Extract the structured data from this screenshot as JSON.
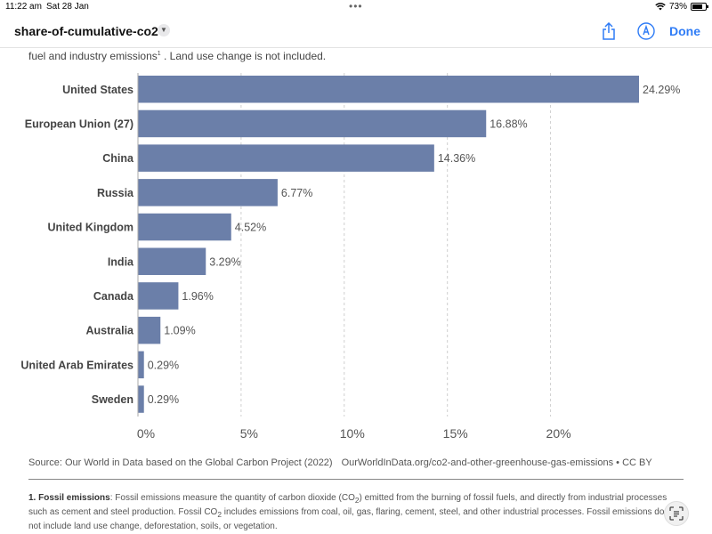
{
  "status_bar": {
    "time": "11:22 am",
    "date": "Sat 28 Jan",
    "battery": "73%"
  },
  "nav": {
    "title": "share-of-cumulative-co2",
    "done_label": "Done",
    "accent": "#2f7cf6"
  },
  "subtitle": {
    "text": "fuel and industry emissions",
    "sup": "1",
    "suffix": " . Land use change is not included."
  },
  "chart_data": {
    "type": "bar",
    "orientation": "horizontal",
    "categories": [
      "United States",
      "European Union (27)",
      "China",
      "Russia",
      "United Kingdom",
      "India",
      "Canada",
      "Australia",
      "United Arab Emirates",
      "Sweden"
    ],
    "values": [
      24.29,
      16.88,
      14.36,
      6.77,
      4.52,
      3.29,
      1.96,
      1.09,
      0.29,
      0.29
    ],
    "value_labels": [
      "24.29%",
      "16.88%",
      "14.36%",
      "6.77%",
      "4.52%",
      "3.29%",
      "1.96%",
      "1.09%",
      "0.29%",
      "0.29%"
    ],
    "x_ticks": [
      0,
      5,
      10,
      15,
      20
    ],
    "x_tick_labels": [
      "0%",
      "5%",
      "10%",
      "15%",
      "20%"
    ],
    "xlim": [
      0,
      24.29
    ],
    "bar_color": "#6b7fa9",
    "grid": true
  },
  "source": {
    "text": "Source: Our World in Data based on the Global Carbon Project (2022)",
    "url": "OurWorldInData.org/co2-and-other-greenhouse-gas-emissions",
    "license": "• CC BY"
  },
  "footnote": {
    "label": "1. Fossil emissions",
    "p1": ": Fossil emissions measure the quantity of carbon dioxide (CO",
    "p2": ") emitted from the burning of fossil fuels, and directly from industrial processes such as cement and steel production. Fossil CO",
    "p3": " includes emissions from coal, oil, gas, flaring, cement, steel, and other industrial processes. Fossil emissions do not include land use change, deforestation, soils, or vegetation.",
    "sub": "2"
  }
}
